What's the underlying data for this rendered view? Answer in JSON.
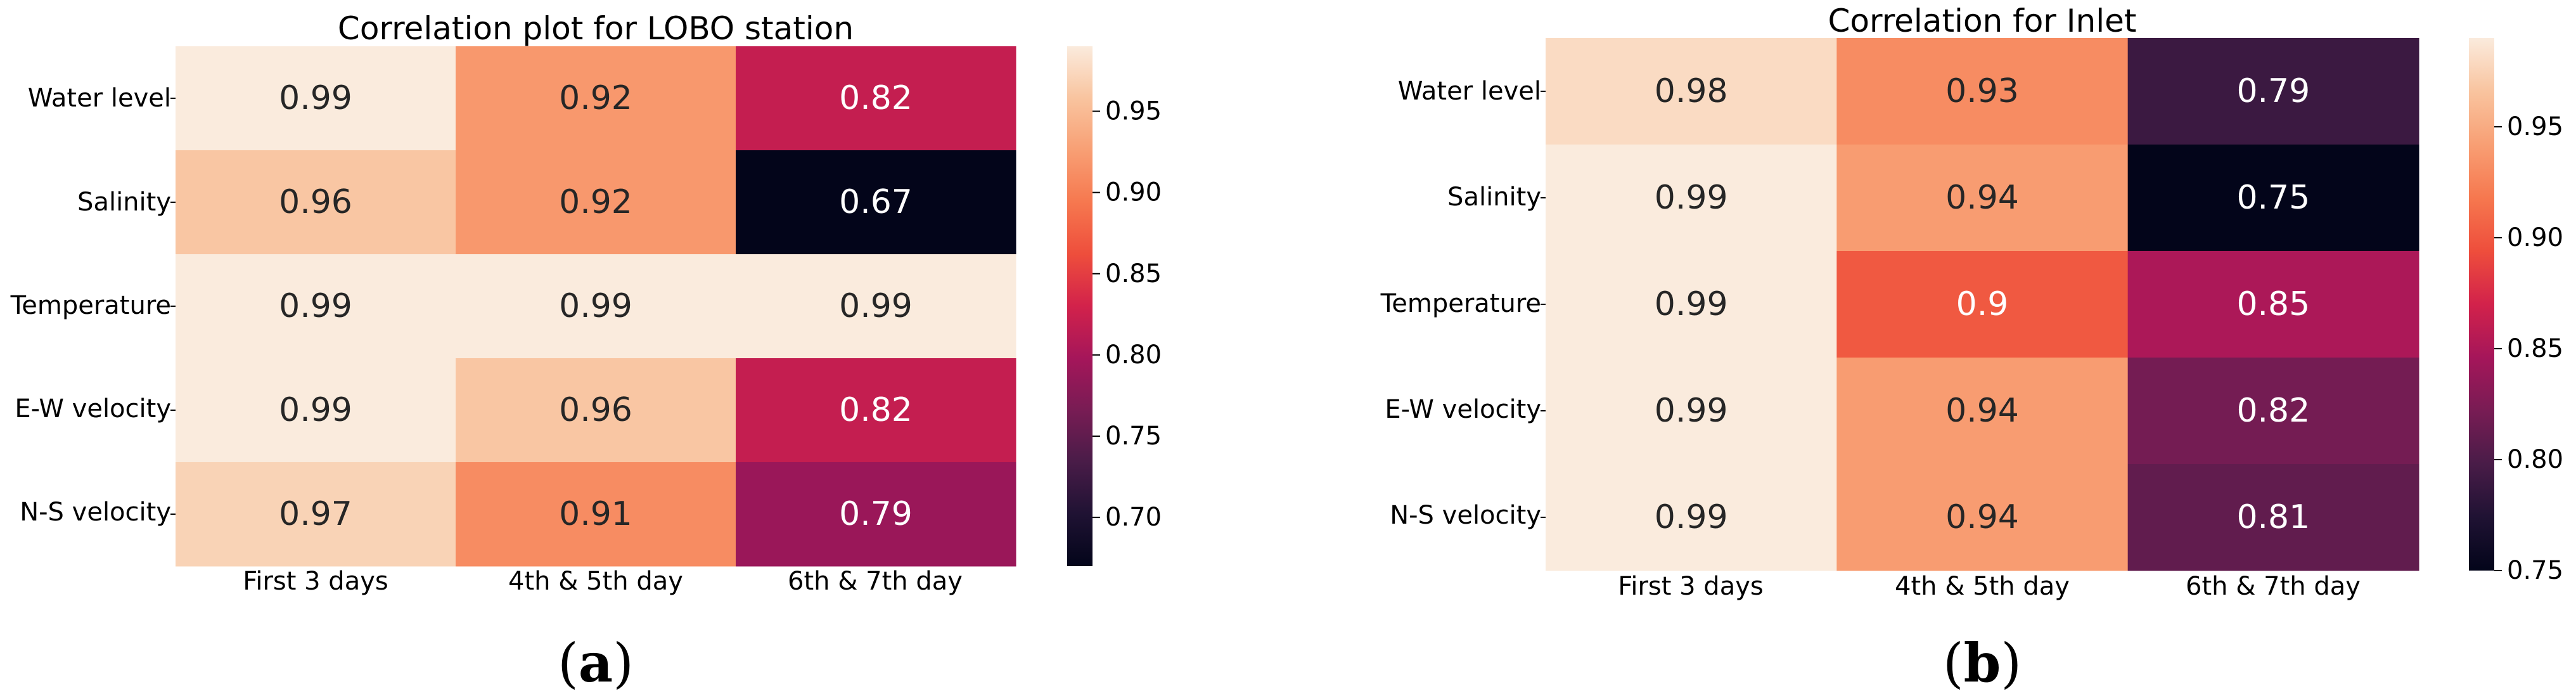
{
  "chart_data": [
    {
      "type": "heatmap",
      "panel": "a",
      "title": "Correlation plot for LOBO station",
      "rows": [
        "Water level",
        "Salinity",
        "Temperature",
        "E-W velocity",
        "N-S velocity"
      ],
      "columns": [
        "First 3 days",
        "4th & 5th day",
        "6th & 7th day"
      ],
      "values": [
        [
          0.99,
          0.92,
          0.82
        ],
        [
          0.96,
          0.92,
          0.67
        ],
        [
          0.99,
          0.99,
          0.99
        ],
        [
          0.99,
          0.96,
          0.82
        ],
        [
          0.97,
          0.91,
          0.79
        ]
      ],
      "labels": [
        [
          "0.99",
          "0.92",
          "0.82"
        ],
        [
          "0.96",
          "0.92",
          "0.67"
        ],
        [
          "0.99",
          "0.99",
          "0.99"
        ],
        [
          "0.99",
          "0.96",
          "0.82"
        ],
        [
          "0.97",
          "0.91",
          "0.79"
        ]
      ],
      "colorbar": {
        "range": [
          0.67,
          0.99
        ],
        "ticks": [
          0.7,
          0.75,
          0.8,
          0.85,
          0.9,
          0.95
        ],
        "tick_labels": [
          "0.70",
          "0.75",
          "0.80",
          "0.85",
          "0.90",
          "0.95"
        ]
      },
      "colormap": "rocket"
    },
    {
      "type": "heatmap",
      "panel": "b",
      "title": "Correlation for Inlet",
      "rows": [
        "Water level",
        "Salinity",
        "Temperature",
        "E-W velocity",
        "N-S velocity"
      ],
      "columns": [
        "First 3 days",
        "4th & 5th day",
        "6th & 7th day"
      ],
      "values": [
        [
          0.98,
          0.93,
          0.79
        ],
        [
          0.99,
          0.94,
          0.75
        ],
        [
          0.99,
          0.9,
          0.85
        ],
        [
          0.99,
          0.94,
          0.82
        ],
        [
          0.99,
          0.94,
          0.81
        ]
      ],
      "labels": [
        [
          "0.98",
          "0.93",
          "0.79"
        ],
        [
          "0.99",
          "0.94",
          "0.75"
        ],
        [
          "0.99",
          "0.9",
          "0.85"
        ],
        [
          "0.99",
          "0.94",
          "0.82"
        ],
        [
          "0.99",
          "0.94",
          "0.81"
        ]
      ],
      "colorbar": {
        "range": [
          0.75,
          0.99
        ],
        "ticks": [
          0.75,
          0.8,
          0.85,
          0.9,
          0.95
        ],
        "tick_labels": [
          "0.75",
          "0.80",
          "0.85",
          "0.90",
          "0.95"
        ]
      },
      "colormap": "rocket"
    }
  ],
  "panel_labels": [
    {
      "open": "(",
      "letter": "a",
      "close": ")"
    },
    {
      "open": "(",
      "letter": "b",
      "close": ")"
    }
  ]
}
